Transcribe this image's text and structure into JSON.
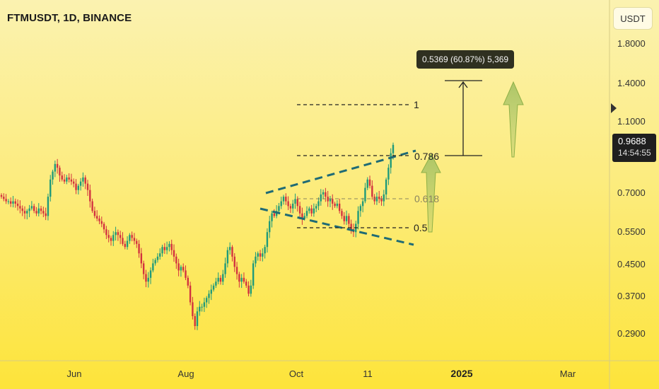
{
  "symbol_title": "FTMUSDT, 1D, BINANCE",
  "currency_button": "USDT",
  "last_price": "0.9688",
  "countdown": "14:54:55",
  "measure_label": "0.5369 (60.87%) 5,369",
  "colors": {
    "background_top": "#fbf2b0",
    "background_bottom": "#fde43a",
    "candle_up": "#1f9a7a",
    "candle_down": "#d2323f",
    "annotation": "#1f6b75",
    "arrow_fill": "#a9c465",
    "fib_line": "#222222",
    "fib_faded": "#8a8460"
  },
  "chart_data": {
    "type": "candlestick",
    "y_scale": "log",
    "y_ticks": [
      "1.8000",
      "1.4000",
      "1.1000",
      "0.7000",
      "0.5500",
      "0.4500",
      "0.3700",
      "0.2900"
    ],
    "x_ticks": [
      "Jun",
      "Aug",
      "Oct",
      "11",
      "2025",
      "Mar"
    ],
    "fib_levels": [
      {
        "label": "1",
        "faded": false
      },
      {
        "label": "0.786",
        "faded": false
      },
      {
        "label": "0.618",
        "faded": true
      },
      {
        "label": "0.5",
        "faded": false
      }
    ],
    "closes": [
      0.7,
      0.69,
      0.68,
      0.68,
      0.67,
      0.68,
      0.67,
      0.66,
      0.65,
      0.64,
      0.63,
      0.64,
      0.65,
      0.66,
      0.64,
      0.63,
      0.65,
      0.64,
      0.63,
      0.62,
      0.7,
      0.78,
      0.82,
      0.86,
      0.84,
      0.8,
      0.78,
      0.77,
      0.79,
      0.78,
      0.77,
      0.76,
      0.73,
      0.75,
      0.77,
      0.79,
      0.76,
      0.73,
      0.68,
      0.64,
      0.62,
      0.61,
      0.6,
      0.59,
      0.57,
      0.55,
      0.54,
      0.53,
      0.55,
      0.56,
      0.55,
      0.54,
      0.52,
      0.51,
      0.53,
      0.55,
      0.54,
      0.53,
      0.52,
      0.49,
      0.46,
      0.43,
      0.41,
      0.42,
      0.44,
      0.46,
      0.47,
      0.48,
      0.49,
      0.51,
      0.5,
      0.51,
      0.52,
      0.5,
      0.48,
      0.46,
      0.44,
      0.45,
      0.44,
      0.42,
      0.4,
      0.36,
      0.33,
      0.31,
      0.34,
      0.35,
      0.35,
      0.36,
      0.37,
      0.38,
      0.39,
      0.4,
      0.41,
      0.42,
      0.41,
      0.43,
      0.46,
      0.5,
      0.51,
      0.48,
      0.45,
      0.43,
      0.41,
      0.42,
      0.41,
      0.4,
      0.38,
      0.4,
      0.46,
      0.48,
      0.49,
      0.48,
      0.49,
      0.51,
      0.56,
      0.6,
      0.63,
      0.62,
      0.64,
      0.66,
      0.68,
      0.7,
      0.68,
      0.66,
      0.65,
      0.67,
      0.69,
      0.66,
      0.63,
      0.61,
      0.62,
      0.64,
      0.65,
      0.63,
      0.65,
      0.66,
      0.68,
      0.71,
      0.72,
      0.7,
      0.68,
      0.69,
      0.67,
      0.66,
      0.67,
      0.64,
      0.62,
      0.6,
      0.62,
      0.59,
      0.57,
      0.56,
      0.59,
      0.64,
      0.66,
      0.68,
      0.74,
      0.78,
      0.75,
      0.7,
      0.68,
      0.7,
      0.69,
      0.68,
      0.71,
      0.78,
      0.84,
      0.92,
      0.97
    ]
  }
}
